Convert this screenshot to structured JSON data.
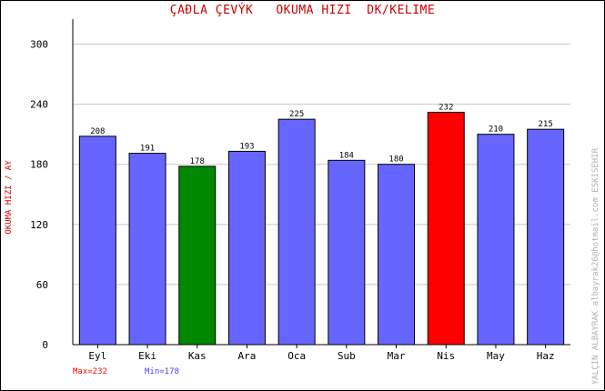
{
  "title": "ÇAÐLA ÇEVÝK   OKUMA HIZI  DK/KELIME",
  "side_credit": "YALÇIN ALBAYRAK  albayrak26@hotmail.com  ESKISEHIR",
  "stats": {
    "max_label": "Max=232",
    "min_label": "Min=178"
  },
  "colors": {
    "title": "#cc0000",
    "ylabel": "#cc0000",
    "bar_default": "#6666ff",
    "bar_max": "#ff0000",
    "bar_min": "#008800",
    "grid": "#c8c8c8",
    "max_text": "#ff0000",
    "min_text": "#4444ff",
    "side_credit": "#b0b0b0"
  },
  "chart_data": {
    "type": "bar",
    "title": "ÇAÐLA ÇEVÝK   OKUMA HIZI  DK/KELIME",
    "xlabel": "",
    "ylabel": "OKUMA HIZI / AY",
    "categories": [
      "Eyl",
      "Eki",
      "Kas",
      "Ara",
      "Oca",
      "Sub",
      "Mar",
      "Nis",
      "May",
      "Haz"
    ],
    "values": [
      208,
      191,
      178,
      193,
      225,
      184,
      180,
      232,
      210,
      215
    ],
    "data_labels": [
      "208",
      "191",
      "178",
      "193",
      "225",
      "184",
      "180",
      "232",
      "210",
      "215"
    ],
    "ylim": [
      0,
      325
    ],
    "yticks": [
      0,
      60,
      120,
      180,
      240,
      300
    ],
    "ytick_labels": [
      "0",
      "60",
      "120",
      "180",
      "240",
      "300"
    ],
    "grid": true,
    "legend": "none"
  }
}
